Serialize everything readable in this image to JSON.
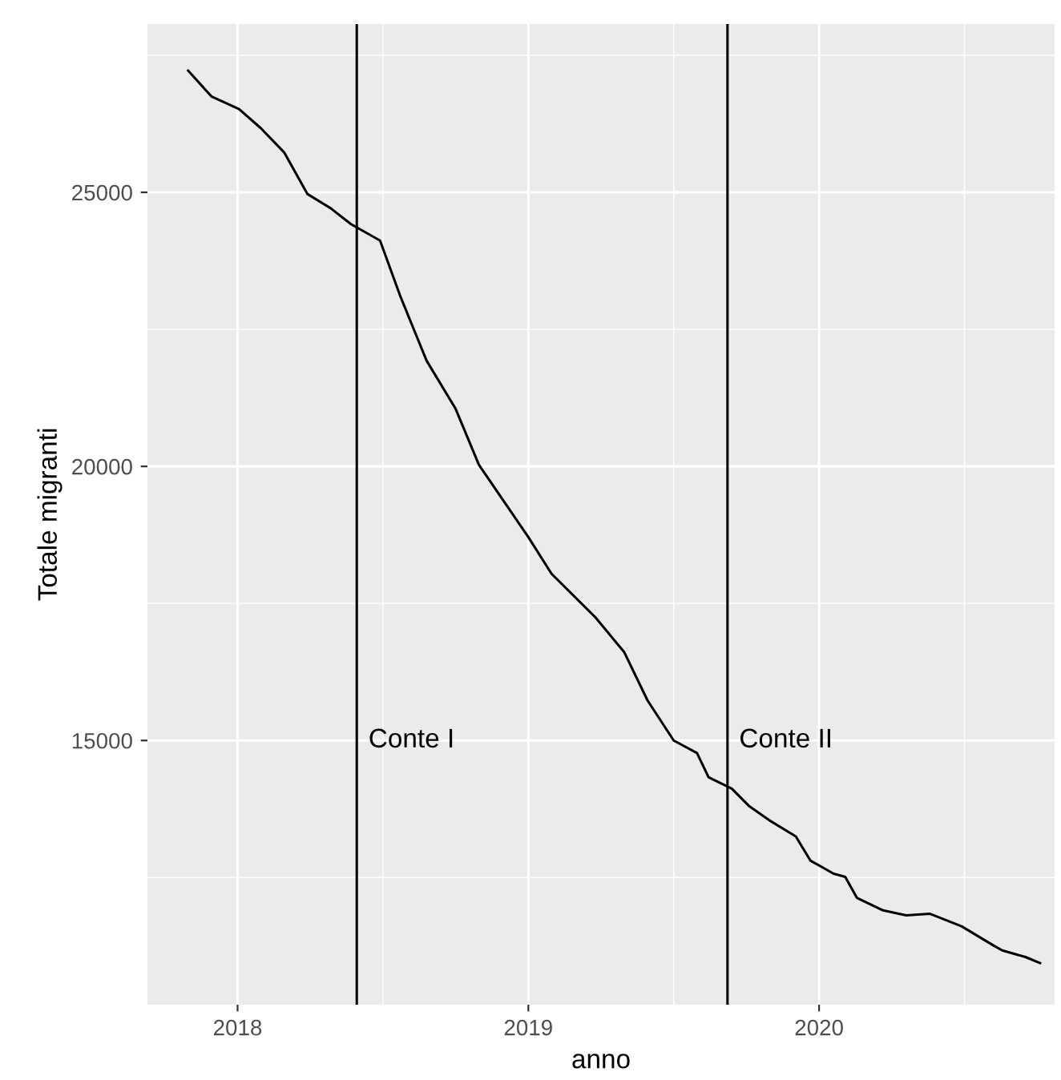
{
  "chart_data": {
    "type": "line",
    "xlabel": "anno",
    "ylabel": "Totale migranti",
    "x": [
      2017.83,
      2017.91,
      2018.005,
      2018.08,
      2018.16,
      2018.24,
      2018.32,
      2018.39,
      2018.49,
      2018.56,
      2018.65,
      2018.75,
      2018.83,
      2019.0,
      2019.08,
      2019.23,
      2019.33,
      2019.41,
      2019.5,
      2019.58,
      2019.62,
      2019.7,
      2019.76,
      2019.83,
      2019.92,
      2019.97,
      2020.05,
      2020.09,
      2020.13,
      2020.22,
      2020.3,
      2020.38,
      2020.49,
      2020.6,
      2020.63,
      2020.71,
      2020.76
    ],
    "series": [
      {
        "color": "#000000",
        "values": [
          27220,
          26750,
          26520,
          26170,
          25730,
          24970,
          24710,
          24420,
          24120,
          23100,
          21930,
          21050,
          20030,
          18710,
          18040,
          17250,
          16610,
          15730,
          15000,
          14770,
          14330,
          14120,
          13800,
          13540,
          13250,
          12810,
          12570,
          12510,
          12130,
          11900,
          11810,
          11840,
          11610,
          11260,
          11170,
          11050,
          10940
        ]
      }
    ],
    "xlim": [
      2017.69,
      2020.81
    ],
    "ylim": [
      10180,
      28070
    ],
    "xticks": [
      2018,
      2019,
      2020
    ],
    "yticks": [
      15000,
      20000,
      25000
    ],
    "ref_lines": [
      {
        "axis": "x",
        "value": 2018.41,
        "label": "Conte I",
        "color": "#000000"
      },
      {
        "axis": "x",
        "value": 2019.685,
        "label": "Conte II",
        "color": "#000000"
      }
    ],
    "grid": true,
    "marker": "none",
    "line_style": "solid"
  }
}
